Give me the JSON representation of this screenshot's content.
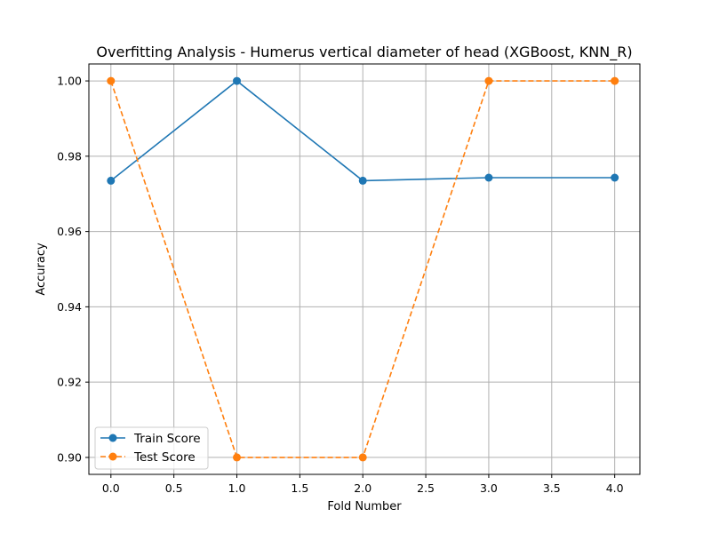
{
  "chart_data": {
    "type": "line",
    "title": "Overfitting Analysis - Humerus vertical diameter of head (XGBoost, KNN_R)",
    "xlabel": "Fold Number",
    "ylabel": "Accuracy",
    "xlim": [
      -0.175,
      4.2
    ],
    "ylim": [
      0.8955,
      1.0045
    ],
    "xticks": [
      0.0,
      0.5,
      1.0,
      1.5,
      2.0,
      2.5,
      3.0,
      3.5,
      4.0
    ],
    "xtick_labels": [
      "0.0",
      "0.5",
      "1.0",
      "1.5",
      "2.0",
      "2.5",
      "3.0",
      "3.5",
      "4.0"
    ],
    "yticks": [
      0.9,
      0.92,
      0.94,
      0.96,
      0.98,
      1.0
    ],
    "ytick_labels": [
      "0.90",
      "0.92",
      "0.94",
      "0.96",
      "0.98",
      "1.00"
    ],
    "grid": true,
    "legend_position": "lower-left",
    "x": [
      0,
      1,
      2,
      3,
      4
    ],
    "series": [
      {
        "name": "Train Score",
        "values": [
          0.9735,
          1.0,
          0.9735,
          0.9743,
          0.9743
        ],
        "color": "#1f77b4",
        "dash": "solid",
        "marker": "circle"
      },
      {
        "name": "Test Score",
        "values": [
          1.0,
          0.9,
          0.9,
          1.0,
          1.0
        ],
        "color": "#ff7f0e",
        "dash": "dashed",
        "marker": "circle"
      }
    ]
  }
}
